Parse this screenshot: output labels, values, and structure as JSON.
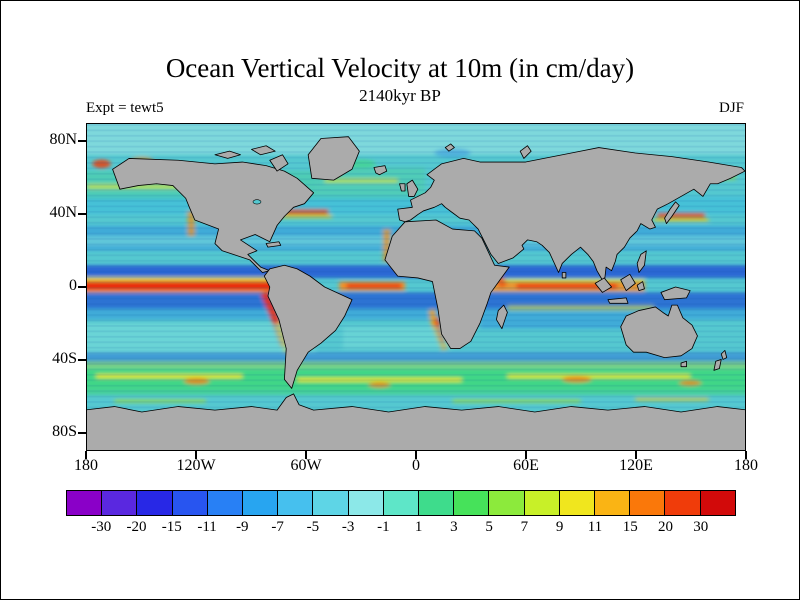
{
  "header": {
    "title": "Ocean Vertical Velocity at 10m (in cm/day)",
    "subtitle": "2140kyr BP",
    "experiment_label": "Expt = tewt5",
    "season_label": "DJF"
  },
  "map": {
    "land_color": "#ABABAB",
    "coast_color": "#000000",
    "ocean_base_color": "#55C8D0",
    "y_ticks": [
      {
        "label": "80N",
        "lat": 80
      },
      {
        "label": "40N",
        "lat": 40
      },
      {
        "label": "0",
        "lat": 0
      },
      {
        "label": "40S",
        "lat": -40
      },
      {
        "label": "80S",
        "lat": -80
      }
    ],
    "x_ticks": [
      {
        "label": "180",
        "lon": -180
      },
      {
        "label": "120W",
        "lon": -120
      },
      {
        "label": "60W",
        "lon": -60
      },
      {
        "label": "0",
        "lon": 0
      },
      {
        "label": "60E",
        "lon": 60
      },
      {
        "label": "120E",
        "lon": 120
      },
      {
        "label": "180",
        "lon": 180
      }
    ]
  },
  "colorbar": {
    "boundary_labels": [
      "-30",
      "-20",
      "-15",
      "-11",
      "-9",
      "-7",
      "-5",
      "-3",
      "-1",
      "1",
      "3",
      "5",
      "7",
      "9",
      "11",
      "15",
      "20",
      "30"
    ],
    "colors": [
      "#8A00C8",
      "#5A28E0",
      "#2828E6",
      "#2855F0",
      "#2880F5",
      "#28A5F0",
      "#46C0EE",
      "#5ED5E6",
      "#8CE8E8",
      "#5EE6C8",
      "#3EDC8C",
      "#46E25A",
      "#8CEA3C",
      "#C8F028",
      "#F0E61E",
      "#FAB414",
      "#FA780A",
      "#F03C0A",
      "#D20A0A"
    ],
    "outline_color": "#000000"
  },
  "chart_data": {
    "type": "heatmap",
    "title": "Ocean Vertical Velocity at 10m (in cm/day)",
    "time_label": "2140kyr BP",
    "experiment": "tewt5",
    "season": "DJF",
    "units": "cm/day",
    "projection": "global equirectangular, 180W-180E, 90S-90N, center 0",
    "x_tick_labels": [
      "180",
      "120W",
      "60W",
      "0",
      "60E",
      "120E",
      "180"
    ],
    "y_tick_labels": [
      "80N",
      "40N",
      "0",
      "40S",
      "80S"
    ],
    "levels": [
      -30,
      -20,
      -15,
      -11,
      -9,
      -7,
      -5,
      -3,
      -1,
      1,
      3,
      5,
      7,
      9,
      11,
      15,
      20,
      30
    ],
    "palette": [
      "#8A00C8",
      "#5A28E0",
      "#2828E6",
      "#2855F0",
      "#2880F5",
      "#28A5F0",
      "#46C0EE",
      "#5ED5E6",
      "#8CE8E8",
      "#5EE6C8",
      "#3EDC8C",
      "#46E25A",
      "#8CEA3C",
      "#C8F028",
      "#F0E61E",
      "#FAB414",
      "#FA780A",
      "#F03C0A",
      "#D20A0A"
    ],
    "legend_position": "bottom horizontal colorbar",
    "features": [
      "strong equatorial upwelling band (red/orange, >15 cm/day) across the Pacific, Atlantic and Indian Oceans",
      "intense coastal upwelling off Peru-Chile, Benguela (SW Africa), California, NW Africa and Somalia",
      "dark blue downwelling bands flanking the equator near 5-15N and 5-15S",
      "green/yellow upwelling band with orange patches along the Southern Ocean near 50-60S",
      "mottled green/blue vertical-velocity streaks in northern mid-latitudes and western boundary currents",
      "continents and Antarctica masked in gray"
    ]
  }
}
